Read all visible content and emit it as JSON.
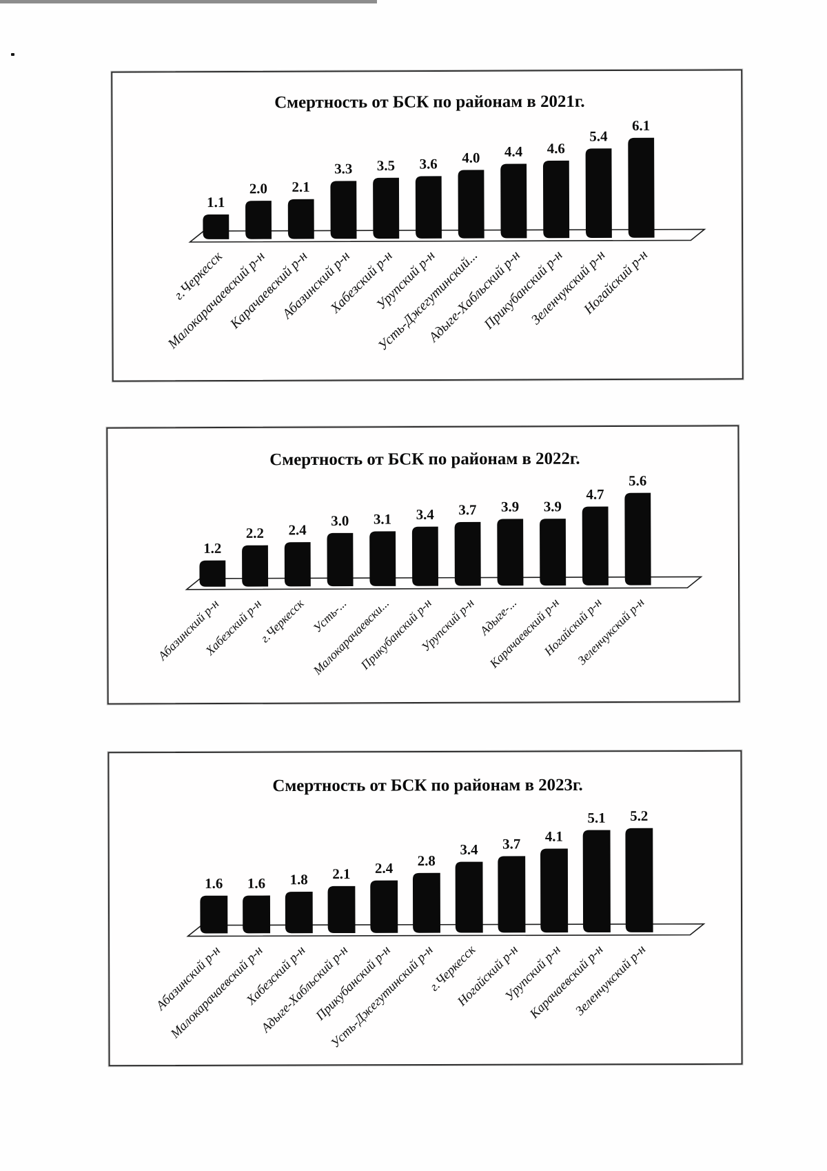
{
  "page": {
    "kind": "scanned document page with three bar charts",
    "bar_color": "#0a0a0a",
    "border_color": "#2e2e2e"
  },
  "chart_data": [
    {
      "type": "bar",
      "title": "Смертность от БСК по районам в 2021г.",
      "categories": [
        "г.Черкесск",
        "Малокарачаевский р-н",
        "Карачаевский р-н",
        "Абазинский р-н",
        "Хабезский р-н",
        "Урупский р-н",
        "Усть-Джегутинский...",
        "Адыге-Хабльский р-н",
        "Прикубанский р-н",
        "Зеленчукский р-н",
        "Ногайский р-н"
      ],
      "values": [
        1.1,
        2.0,
        2.1,
        3.3,
        3.5,
        3.6,
        4.0,
        4.4,
        4.6,
        5.4,
        6.1
      ],
      "value_labels": [
        "1.1",
        "2.0",
        "2.1",
        "3.3",
        "3.5",
        "3.6",
        "4.0",
        "4.4",
        "4.6",
        "5.4",
        "6.1"
      ],
      "xlabel": "",
      "ylabel": "",
      "ylim": [
        0,
        7
      ],
      "grid": false,
      "legend": false,
      "bar_color": "#0a0a0a",
      "style": "3d-black-columns",
      "category_label_rotation_deg": 45
    },
    {
      "type": "bar",
      "title": "Смертность от БСК по районам в 2022г.",
      "categories": [
        "Абазинский р-н",
        "Хабезский р-н",
        "г.Черкесск",
        "Усть-...",
        "Малокарачаевски...",
        "Прикубанский р-н",
        "Урупский р-н",
        "Адыге-...",
        "Карачаевский р-н",
        "Ногайский р-н",
        "Зеленчукский р-н"
      ],
      "values": [
        1.2,
        2.2,
        2.4,
        3.0,
        3.1,
        3.4,
        3.7,
        3.9,
        3.9,
        4.7,
        5.6
      ],
      "value_labels": [
        "1.2",
        "2.2",
        "2.4",
        "3.0",
        "3.1",
        "3.4",
        "3.7",
        "3.9",
        "3.9",
        "4.7",
        "5.6"
      ],
      "xlabel": "",
      "ylabel": "",
      "ylim": [
        0,
        6
      ],
      "grid": false,
      "legend": false,
      "bar_color": "#0a0a0a",
      "style": "3d-black-columns",
      "category_label_rotation_deg": 45
    },
    {
      "type": "bar",
      "title": "Смертность от БСК по районам в 2023г.",
      "categories": [
        "Абазинский р-н",
        "Малокарачаевский р-н",
        "Хабезский р-н",
        "Адыге-Хабльский р-н",
        "Прикубанский р-н",
        "Усть-Джегутинский р-н",
        "г.Черкесск",
        "Ногайский р-н",
        "Урупский р-н",
        "Карачаевский р-н",
        "Зеленчукский р-н"
      ],
      "values": [
        1.6,
        1.6,
        1.8,
        2.1,
        2.4,
        2.8,
        3.4,
        3.7,
        4.1,
        5.1,
        5.2
      ],
      "value_labels": [
        "1.6",
        "1.6",
        "1.8",
        "2.1",
        "2.4",
        "2.8",
        "3.4",
        "3.7",
        "4.1",
        "5.1",
        "5.2"
      ],
      "xlabel": "",
      "ylabel": "",
      "ylim": [
        0,
        6
      ],
      "grid": false,
      "legend": false,
      "bar_color": "#0a0a0a",
      "style": "3d-black-columns",
      "category_label_rotation_deg": 45
    }
  ]
}
